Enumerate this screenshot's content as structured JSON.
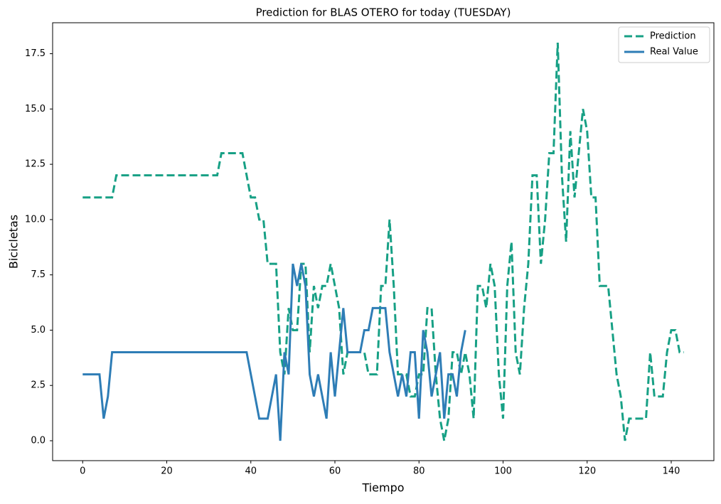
{
  "chart_data": {
    "type": "line",
    "title": "Prediction for BLAS OTERO for today (TUESDAY)",
    "xlabel": "Tiempo",
    "ylabel": "Bicicletas",
    "xlim": [
      -7.15,
      150.15
    ],
    "ylim": [
      -0.9,
      18.9
    ],
    "xticks": [
      0,
      20,
      40,
      60,
      80,
      100,
      120,
      140
    ],
    "yticks": [
      {
        "value": 0,
        "label": "0.0"
      },
      {
        "value": 2.5,
        "label": "2.5"
      },
      {
        "value": 5,
        "label": "5.0"
      },
      {
        "value": 7.5,
        "label": "7.5"
      },
      {
        "value": 10,
        "label": "10.0"
      },
      {
        "value": 12.5,
        "label": "12.5"
      },
      {
        "value": 15,
        "label": "15.0"
      },
      {
        "value": 17.5,
        "label": "17.5"
      }
    ],
    "grid": false,
    "legend": "upper right",
    "series": [
      {
        "name": "Prediction",
        "color": "#17a085",
        "dashed": true,
        "x": [
          0,
          1,
          2,
          3,
          4,
          5,
          6,
          7,
          8,
          9,
          10,
          11,
          12,
          13,
          14,
          15,
          16,
          17,
          18,
          19,
          20,
          21,
          22,
          23,
          24,
          25,
          26,
          27,
          28,
          29,
          30,
          31,
          32,
          33,
          34,
          35,
          36,
          37,
          38,
          39,
          40,
          41,
          42,
          43,
          44,
          45,
          46,
          47,
          48,
          49,
          50,
          51,
          52,
          53,
          54,
          55,
          56,
          57,
          58,
          59,
          60,
          61,
          62,
          63,
          64,
          65,
          66,
          67,
          68,
          69,
          70,
          71,
          72,
          73,
          74,
          75,
          76,
          77,
          78,
          79,
          80,
          81,
          82,
          83,
          84,
          85,
          86,
          87,
          88,
          89,
          90,
          91,
          92,
          93,
          94,
          95,
          96,
          97,
          98,
          99,
          100,
          101,
          102,
          103,
          104,
          105,
          106,
          107,
          108,
          109,
          110,
          111,
          112,
          113,
          114,
          115,
          116,
          117,
          118,
          119,
          120,
          121,
          122,
          123,
          124,
          125,
          126,
          127,
          128,
          129,
          130,
          131,
          132,
          133,
          134,
          135,
          136,
          137,
          138,
          139,
          140,
          141,
          142,
          143
        ],
        "values": [
          11,
          11,
          11,
          11,
          11,
          11,
          11,
          11,
          12,
          12,
          12,
          12,
          12,
          12,
          12,
          12,
          12,
          12,
          12,
          12,
          12,
          12,
          12,
          12,
          12,
          12,
          12,
          12,
          12,
          12,
          12,
          12,
          12,
          13,
          13,
          13,
          13,
          13,
          13,
          12,
          11,
          11,
          10,
          10,
          8,
          8,
          8,
          4,
          3,
          6,
          5,
          5,
          8,
          8,
          4,
          7,
          6,
          7,
          7,
          8,
          7,
          6,
          3,
          4,
          4,
          4,
          4,
          4,
          3,
          3,
          3,
          7,
          7,
          10,
          7,
          3,
          3,
          3,
          2,
          2,
          3,
          3,
          6,
          6,
          3,
          1,
          0,
          1,
          4,
          4,
          3,
          4,
          3,
          1,
          7,
          7,
          6,
          8,
          7,
          3,
          1,
          7,
          9,
          4,
          3,
          6,
          8,
          12,
          12,
          8,
          10,
          13,
          13,
          18,
          12,
          9,
          14,
          11,
          13,
          15,
          14,
          11,
          11,
          7,
          7,
          7,
          5,
          3,
          2,
          0,
          1,
          1,
          1,
          1,
          1,
          4,
          2,
          2,
          2,
          4,
          5,
          5,
          4,
          4
        ]
      },
      {
        "name": "Real Value",
        "color": "#2e7db6",
        "dashed": false,
        "x": [
          0,
          1,
          2,
          3,
          4,
          5,
          6,
          7,
          8,
          9,
          10,
          11,
          12,
          13,
          14,
          15,
          16,
          17,
          18,
          19,
          20,
          21,
          22,
          23,
          24,
          25,
          26,
          27,
          28,
          29,
          30,
          31,
          32,
          33,
          34,
          35,
          36,
          37,
          38,
          39,
          40,
          41,
          42,
          43,
          44,
          45,
          46,
          47,
          48,
          49,
          50,
          51,
          52,
          53,
          54,
          55,
          56,
          57,
          58,
          59,
          60,
          61,
          62,
          63,
          64,
          65,
          66,
          67,
          68,
          69,
          70,
          71,
          72,
          73,
          74,
          75,
          76,
          77,
          78,
          79,
          80,
          81,
          82,
          83,
          84,
          85,
          86,
          87,
          88,
          89,
          90,
          91
        ],
        "values": [
          3,
          3,
          3,
          3,
          3,
          1,
          2,
          4,
          4,
          4,
          4,
          4,
          4,
          4,
          4,
          4,
          4,
          4,
          4,
          4,
          4,
          4,
          4,
          4,
          4,
          4,
          4,
          4,
          4,
          4,
          4,
          4,
          4,
          4,
          4,
          4,
          4,
          4,
          4,
          4,
          3,
          2,
          1,
          1,
          1,
          2,
          3,
          0,
          4,
          3,
          8,
          7,
          8,
          7,
          3,
          2,
          3,
          2,
          1,
          4,
          2,
          4,
          6,
          4,
          4,
          4,
          4,
          5,
          5,
          6,
          6,
          6,
          6,
          4,
          3,
          2,
          3,
          2,
          4,
          4,
          1,
          5,
          4,
          2,
          3,
          4,
          1,
          3,
          3,
          2,
          4,
          5
        ]
      }
    ]
  }
}
